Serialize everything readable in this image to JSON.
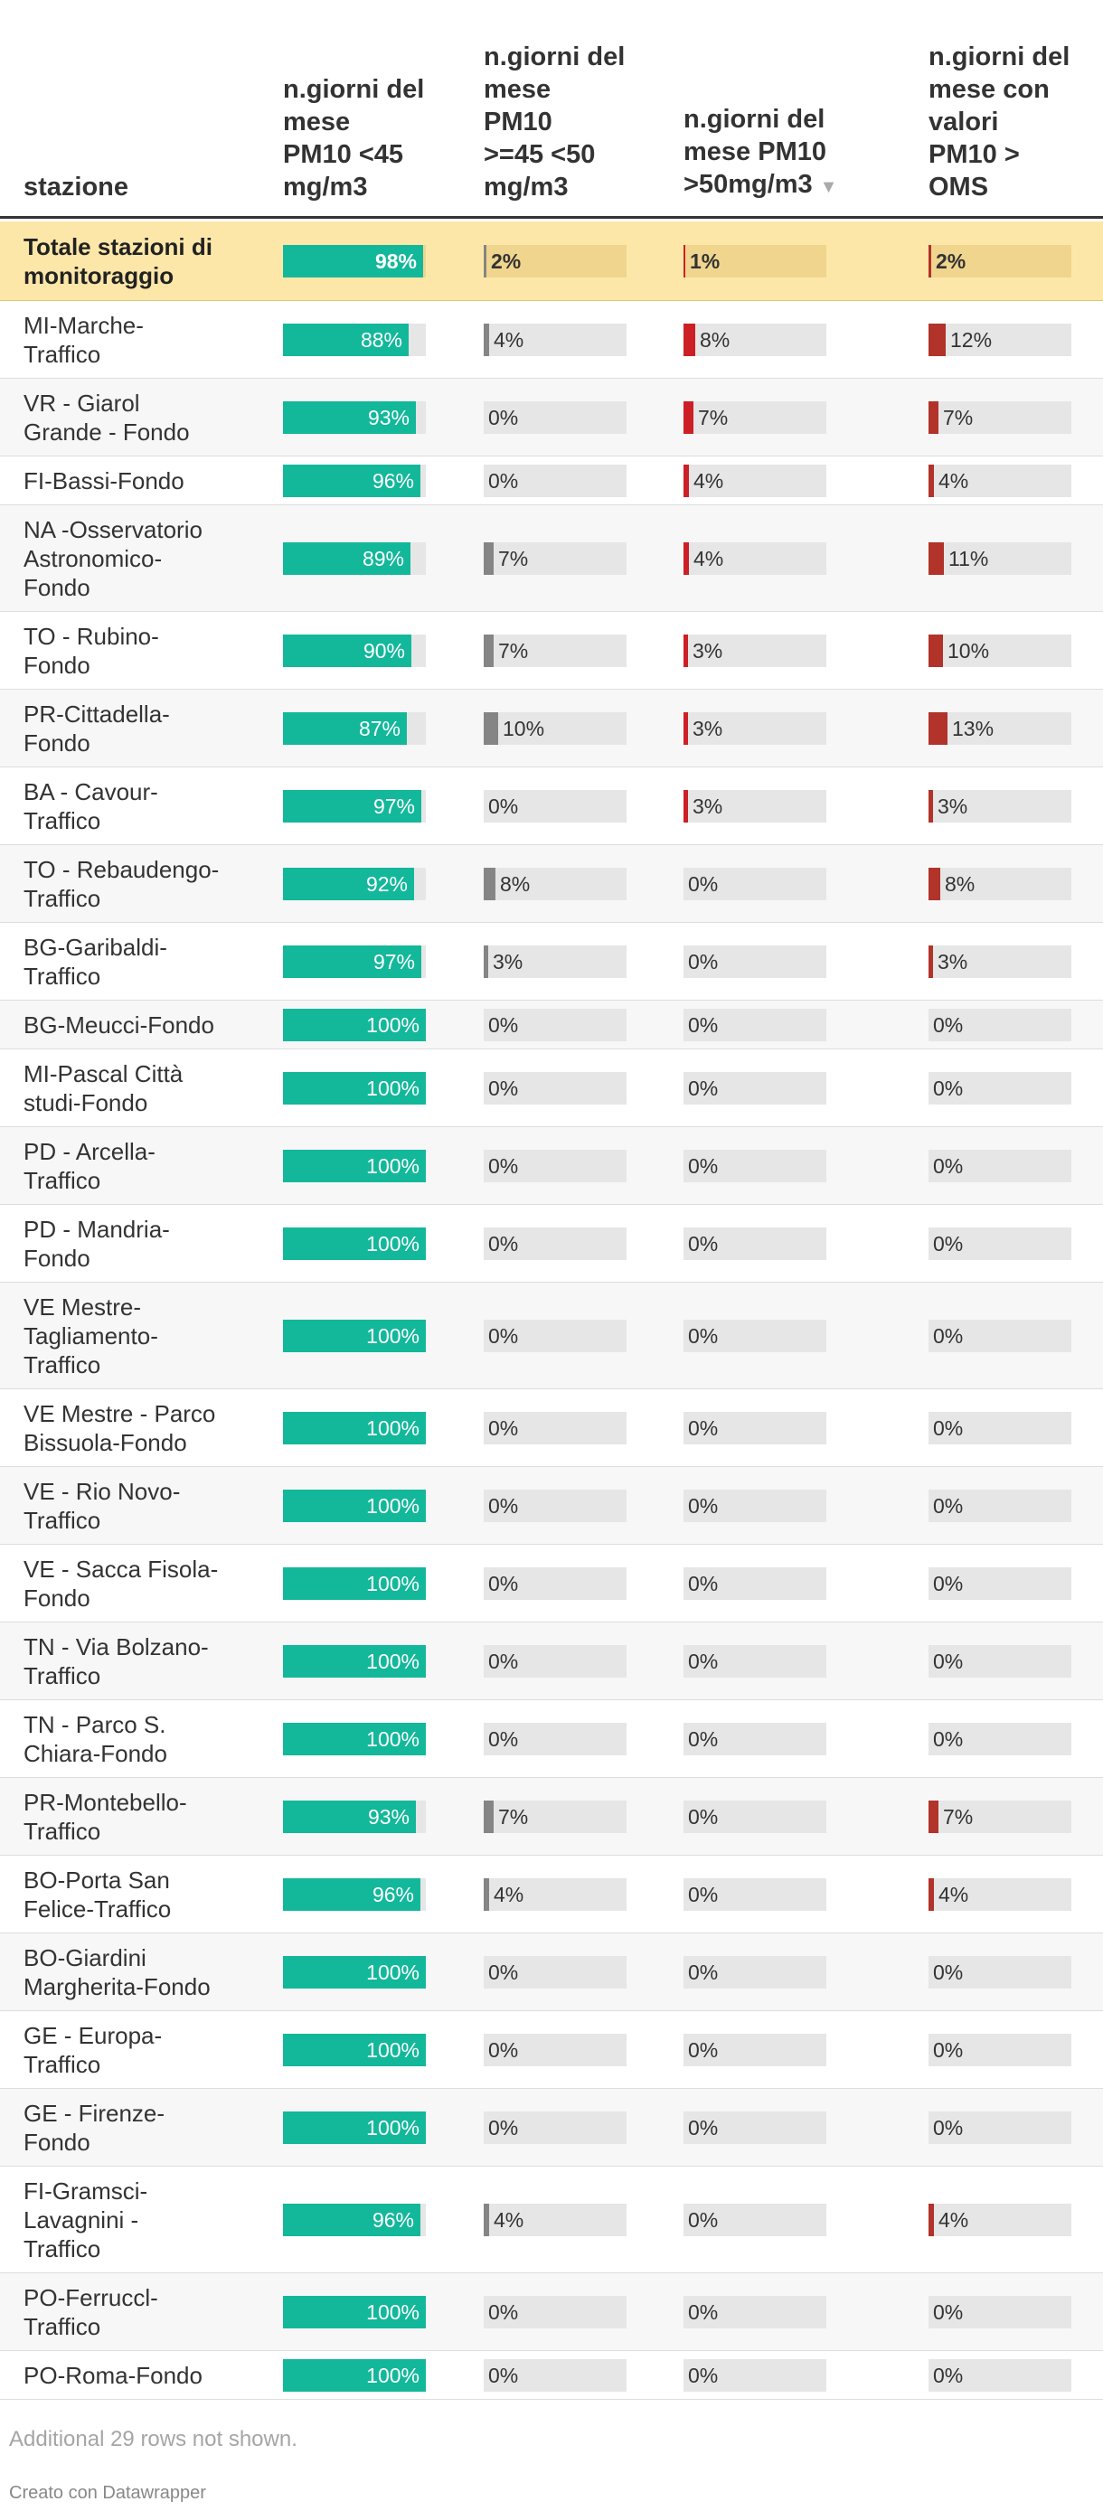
{
  "headers": {
    "station": "stazione",
    "col1": [
      "n.giorni del",
      "mese",
      "PM10  <45",
      "mg/m3"
    ],
    "col2": [
      "n.giorni del",
      "mese",
      "PM10",
      ">=45 <50",
      "mg/m3"
    ],
    "col3": [
      "n.giorni del",
      "mese PM10",
      ">50mg/m3"
    ],
    "col4": [
      "n.giorni del",
      "mese con",
      "valori",
      "PM10 >",
      "OMS"
    ],
    "sort_icon": "sort-down-triangle"
  },
  "colors": {
    "col1": "#13b89a",
    "col2": "#858585",
    "col3": "#cc2026",
    "col4": "#b13329",
    "track": "#e6e6e6",
    "total_bg": "#fde7a8"
  },
  "chart_data": {
    "type": "table",
    "title": "",
    "unit": "%",
    "columns": [
      "stazione",
      "n.giorni del mese PM10 <45 mg/m3",
      "n.giorni del mese PM10 >=45 <50 mg/m3",
      "n.giorni del mese PM10 >50mg/m3",
      "n.giorni del mese con valori PM10 > OMS"
    ],
    "sort": "n.giorni del mese PM10 >50mg/m3 descending",
    "rows": [
      {
        "station": [
          "Totale stazioni di",
          "monitoraggio"
        ],
        "values": [
          98,
          2,
          1,
          2
        ],
        "total": true
      },
      {
        "station": [
          "MI-Marche-",
          "Traffico"
        ],
        "values": [
          88,
          4,
          8,
          12
        ]
      },
      {
        "station": [
          "VR - Giarol",
          "Grande - Fondo"
        ],
        "values": [
          93,
          0,
          7,
          7
        ]
      },
      {
        "station": [
          "FI-Bassi-Fondo"
        ],
        "values": [
          96,
          0,
          4,
          4
        ]
      },
      {
        "station": [
          "NA -Osservatorio",
          "Astronomico-",
          "Fondo"
        ],
        "values": [
          89,
          7,
          4,
          11
        ]
      },
      {
        "station": [
          "TO - Rubino-",
          "Fondo"
        ],
        "values": [
          90,
          7,
          3,
          10
        ]
      },
      {
        "station": [
          "PR-Cittadella-",
          "Fondo"
        ],
        "values": [
          87,
          10,
          3,
          13
        ]
      },
      {
        "station": [
          "BA - Cavour-",
          "Traffico"
        ],
        "values": [
          97,
          0,
          3,
          3
        ]
      },
      {
        "station": [
          "TO - Rebaudengo-",
          "Traffico"
        ],
        "values": [
          92,
          8,
          0,
          8
        ]
      },
      {
        "station": [
          "BG-Garibaldi-",
          "Traffico"
        ],
        "values": [
          97,
          3,
          0,
          3
        ]
      },
      {
        "station": [
          "BG-Meucci-Fondo"
        ],
        "values": [
          100,
          0,
          0,
          0
        ]
      },
      {
        "station": [
          "MI-Pascal Città",
          "studi-Fondo"
        ],
        "values": [
          100,
          0,
          0,
          0
        ]
      },
      {
        "station": [
          "PD - Arcella-",
          "Traffico"
        ],
        "values": [
          100,
          0,
          0,
          0
        ]
      },
      {
        "station": [
          "PD - Mandria-",
          "Fondo"
        ],
        "values": [
          100,
          0,
          0,
          0
        ]
      },
      {
        "station": [
          "VE Mestre-",
          "Tagliamento-",
          "Traffico"
        ],
        "values": [
          100,
          0,
          0,
          0
        ]
      },
      {
        "station": [
          "VE Mestre - Parco",
          "Bissuola-Fondo"
        ],
        "values": [
          100,
          0,
          0,
          0
        ]
      },
      {
        "station": [
          "VE - Rio Novo-",
          "Traffico"
        ],
        "values": [
          100,
          0,
          0,
          0
        ]
      },
      {
        "station": [
          "VE - Sacca Fisola-",
          "Fondo"
        ],
        "values": [
          100,
          0,
          0,
          0
        ]
      },
      {
        "station": [
          "TN - Via Bolzano-",
          "Traffico"
        ],
        "values": [
          100,
          0,
          0,
          0
        ]
      },
      {
        "station": [
          "TN - Parco S.",
          "Chiara-Fondo"
        ],
        "values": [
          100,
          0,
          0,
          0
        ]
      },
      {
        "station": [
          "PR-Montebello-",
          "Traffico"
        ],
        "values": [
          93,
          7,
          0,
          7
        ]
      },
      {
        "station": [
          "BO-Porta San",
          "Felice-Traffico"
        ],
        "values": [
          96,
          4,
          0,
          4
        ]
      },
      {
        "station": [
          "BO-Giardini",
          "Margherita-Fondo"
        ],
        "values": [
          100,
          0,
          0,
          0
        ]
      },
      {
        "station": [
          "GE - Europa-",
          "Traffico"
        ],
        "values": [
          100,
          0,
          0,
          0
        ]
      },
      {
        "station": [
          "GE - Firenze-",
          "Fondo"
        ],
        "values": [
          100,
          0,
          0,
          0
        ]
      },
      {
        "station": [
          "FI-Gramsci-",
          "Lavagnini -",
          "Traffico"
        ],
        "values": [
          96,
          4,
          0,
          4
        ]
      },
      {
        "station": [
          "PO-Ferruccl-",
          "Traffico"
        ],
        "values": [
          100,
          0,
          0,
          0
        ]
      },
      {
        "station": [
          "PO-Roma-Fondo"
        ],
        "values": [
          100,
          0,
          0,
          0
        ]
      }
    ]
  },
  "footer": {
    "note": "Additional 29 rows not shown.",
    "credit": "Creato con Datawrapper"
  }
}
